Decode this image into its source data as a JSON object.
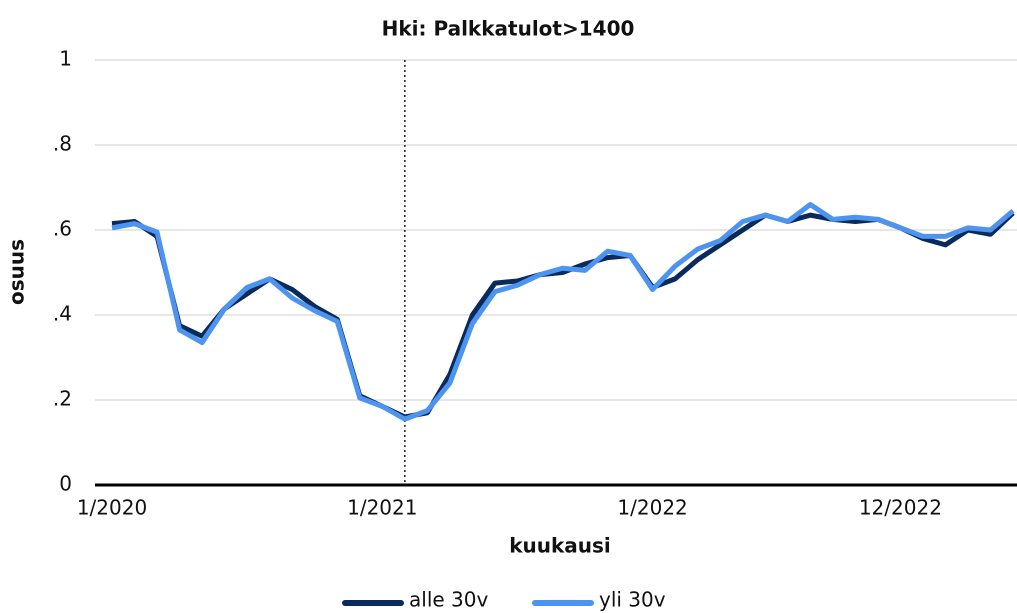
{
  "chart_data": {
    "type": "line",
    "title": "Hki: Palkkatulot>1400",
    "x_label": "kuukausi",
    "y_label": "osuus",
    "categories": [
      "1/2020",
      null,
      null,
      null,
      null,
      null,
      null,
      null,
      null,
      null,
      null,
      null,
      "1/2021",
      null,
      null,
      null,
      null,
      null,
      null,
      null,
      null,
      null,
      null,
      null,
      "1/2022",
      null,
      null,
      null,
      null,
      null,
      null,
      null,
      null,
      null,
      null,
      "12/2022",
      null,
      null,
      null,
      null,
      null
    ],
    "series": [
      {
        "name": "alle 30v",
        "color": "#0a2a5c",
        "values": [
          0.615,
          0.62,
          0.585,
          0.375,
          0.35,
          0.415,
          0.45,
          0.485,
          0.46,
          0.42,
          0.39,
          0.21,
          0.185,
          0.16,
          0.17,
          0.26,
          0.4,
          0.475,
          0.48,
          0.495,
          0.5,
          0.52,
          0.535,
          0.54,
          0.465,
          0.485,
          0.53,
          0.565,
          0.6,
          0.635,
          0.62,
          0.635,
          0.625,
          0.62,
          0.625,
          0.605,
          0.58,
          0.565,
          0.6,
          0.59,
          0.64
        ]
      },
      {
        "name": "yli 30v",
        "color": "#4d94f0",
        "values": [
          0.605,
          0.615,
          0.595,
          0.365,
          0.335,
          0.415,
          0.465,
          0.485,
          0.44,
          0.41,
          0.385,
          0.205,
          0.185,
          0.155,
          0.175,
          0.24,
          0.38,
          0.455,
          0.47,
          0.495,
          0.51,
          0.505,
          0.55,
          0.54,
          0.46,
          0.515,
          0.555,
          0.575,
          0.62,
          0.635,
          0.62,
          0.66,
          0.625,
          0.63,
          0.625,
          0.605,
          0.585,
          0.585,
          0.605,
          0.6,
          0.645
        ]
      }
    ],
    "ylim": [
      0,
      1
    ],
    "yticks": [
      0,
      {
        "value": 0.2,
        "label": ".2"
      },
      {
        "value": 0.4,
        "label": ".4"
      },
      {
        "value": 0.6,
        "label": ".6"
      },
      {
        "value": 0.8,
        "label": ".8"
      },
      1
    ],
    "grid": true,
    "reference_line": {
      "x_index": 13,
      "style": "dotted"
    },
    "legend": "bottom"
  }
}
